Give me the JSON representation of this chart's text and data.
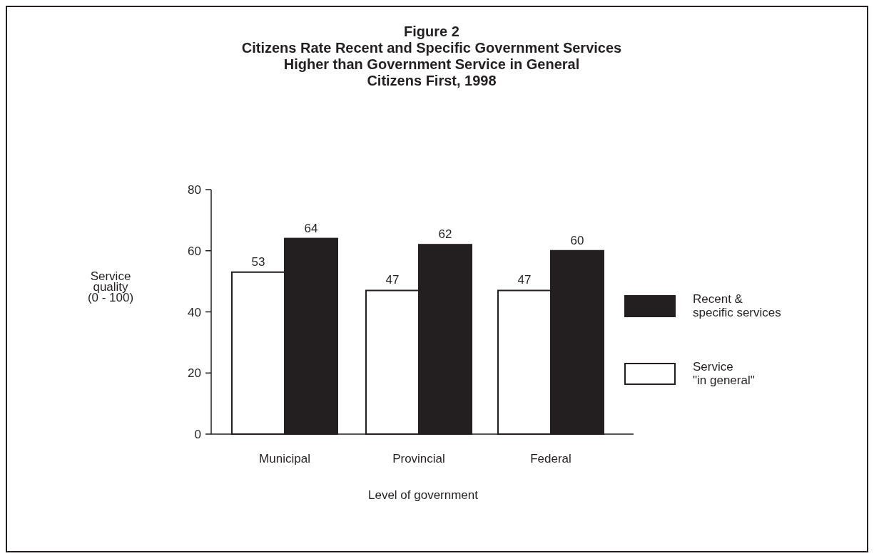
{
  "chart_data": {
    "type": "bar",
    "title": "Figure 2\nCitizens Rate Recent and Specific Government Services\nHigher than Government Service in General\nCitizens First, 1998",
    "xlabel": "Level of government",
    "ylabel": "Service\nquality\n(0 - 100)",
    "categories": [
      "Municipal",
      "Provincial",
      "Federal"
    ],
    "series": [
      {
        "name": "Service\n\"in general\"",
        "color": "#ffffff",
        "values": [
          53,
          47,
          47
        ]
      },
      {
        "name": "Recent &\nspecific services",
        "color": "#231f20",
        "values": [
          64,
          62,
          60
        ]
      }
    ],
    "ylim": [
      0,
      80
    ],
    "yticks": [
      0,
      20,
      40,
      60,
      80
    ],
    "data_labels": true,
    "legend": "right",
    "grid": false
  }
}
